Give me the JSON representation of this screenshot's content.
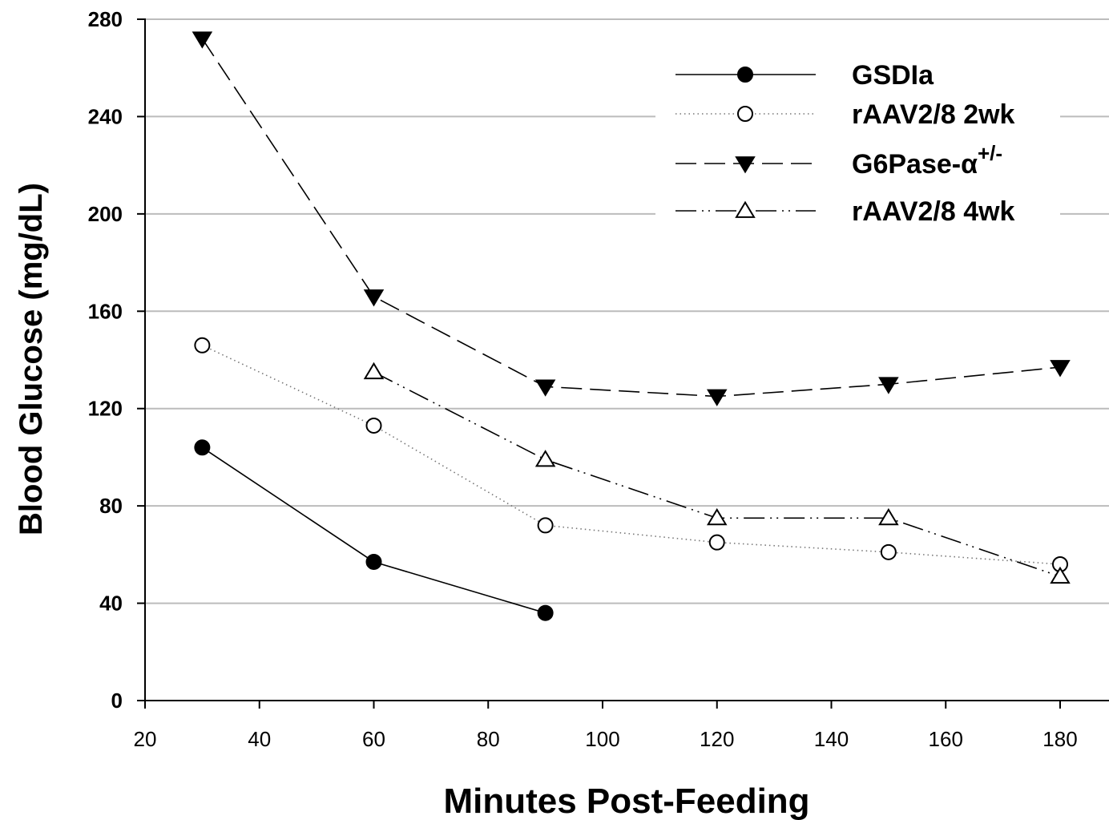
{
  "chart_data": {
    "type": "line",
    "title": "",
    "xlabel": "Minutes Post-Feeding",
    "ylabel": "Blood Glucose (mg/dL)",
    "xlim": [
      20,
      180
    ],
    "ylim": [
      0,
      280
    ],
    "x_ticks": [
      20,
      40,
      60,
      80,
      100,
      120,
      140,
      160,
      180
    ],
    "y_ticks": [
      0,
      40,
      80,
      120,
      160,
      200,
      240,
      280
    ],
    "grid": "horizontal",
    "legend_position": "top-right",
    "series": [
      {
        "name": "GSDIa",
        "marker": "filled-circle",
        "line_style": "solid",
        "x": [
          30,
          60,
          90
        ],
        "y": [
          104,
          57,
          36
        ]
      },
      {
        "name": "rAAV2/8 2wk",
        "marker": "open-circle",
        "line_style": "dotted",
        "x": [
          30,
          60,
          90,
          120,
          150,
          180
        ],
        "y": [
          146,
          113,
          72,
          65,
          61,
          56
        ]
      },
      {
        "name": "G6Pase-α",
        "name_superscript": "+/-",
        "marker": "filled-triangle-down",
        "line_style": "dashed",
        "x": [
          30,
          60,
          90,
          120,
          150,
          180
        ],
        "y": [
          272,
          166,
          129,
          125,
          130,
          137
        ]
      },
      {
        "name": "rAAV2/8 4wk",
        "marker": "open-triangle-up",
        "line_style": "dash-dot-dot",
        "x": [
          60,
          90,
          120,
          150,
          180
        ],
        "y": [
          135,
          99,
          75,
          75,
          51
        ]
      }
    ]
  }
}
